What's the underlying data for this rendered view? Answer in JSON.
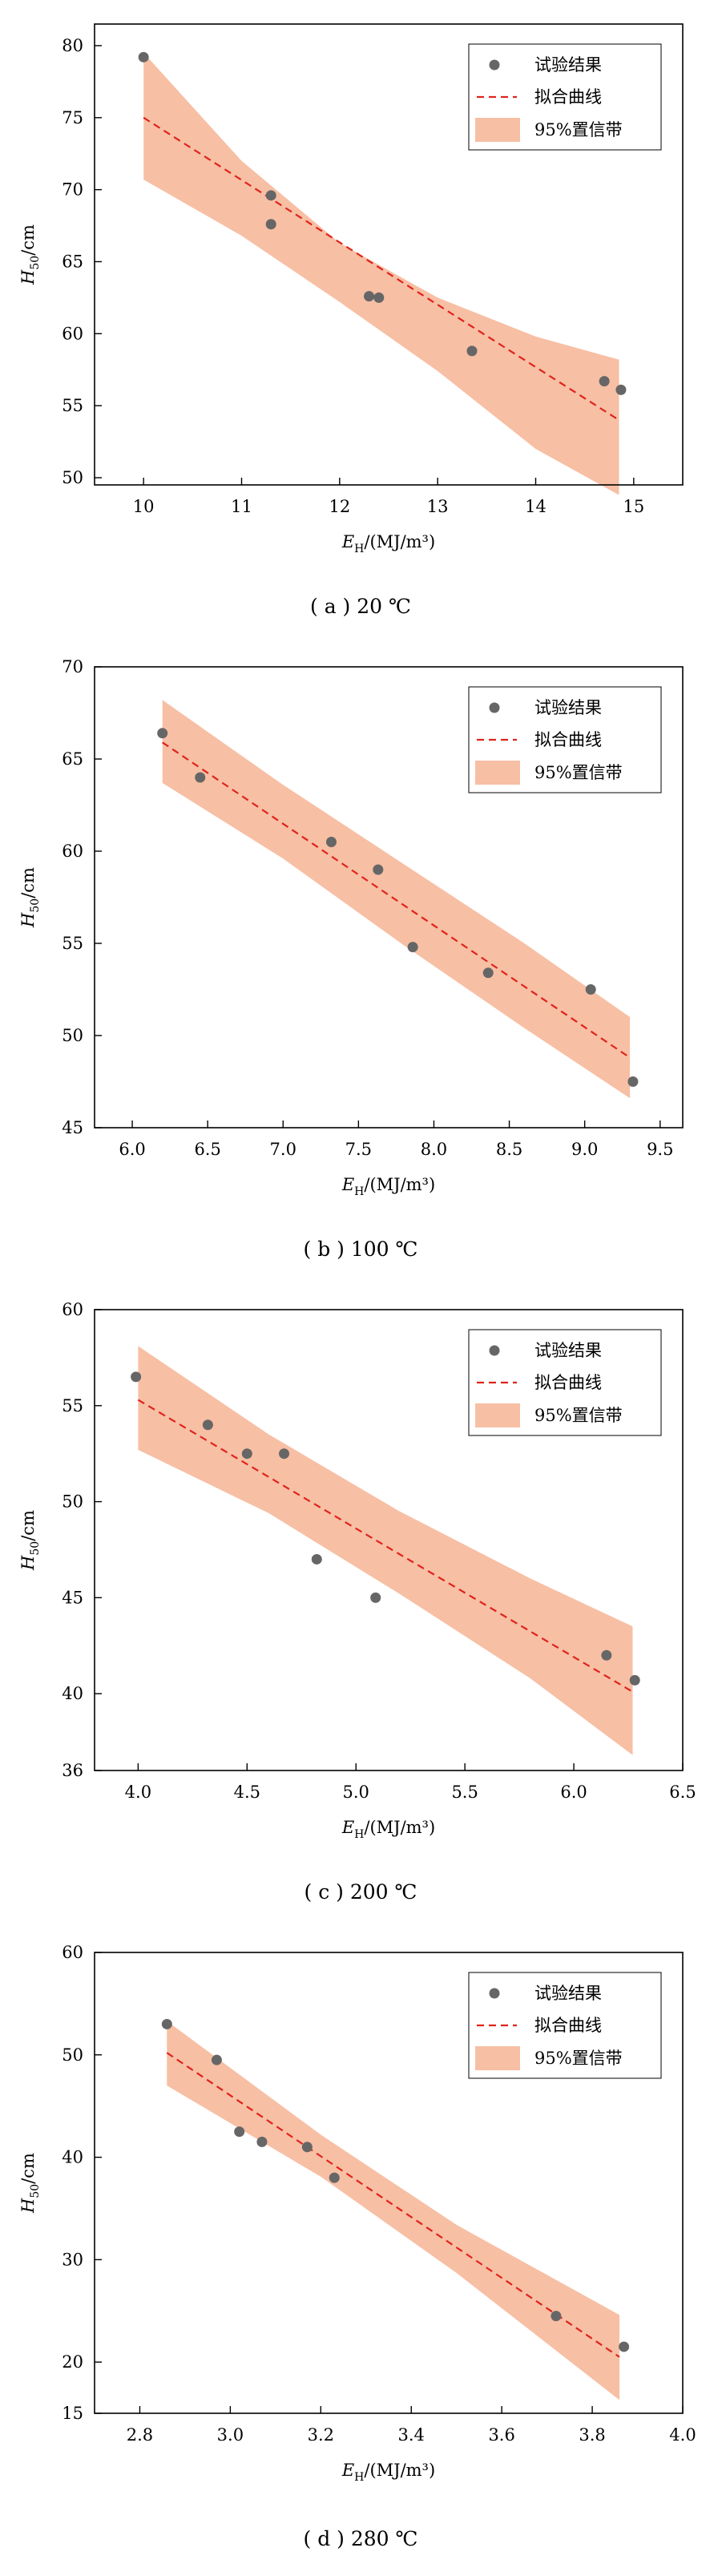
{
  "chart_data": [
    {
      "type": "scatter",
      "caption": "( a ) 20 ℃",
      "xlabel_main": "E",
      "xlabel_sub": "H",
      "xlabel_rest": "/(MJ/m³)",
      "ylabel_main": "H",
      "ylabel_sub": "50",
      "ylabel_rest": "/cm",
      "xlim": [
        9.5,
        15.5
      ],
      "ylim": [
        49.5,
        81.5
      ],
      "xticks": [
        "10",
        "11",
        "12",
        "13",
        "14",
        "15"
      ],
      "xtick_values": [
        10,
        11,
        12,
        13,
        14,
        15
      ],
      "yticks": [
        "50",
        "55",
        "60",
        "65",
        "70",
        "75",
        "80"
      ],
      "ytick_values": [
        50,
        55,
        60,
        65,
        70,
        75,
        80
      ],
      "legend": [
        "试验结果",
        "拟合曲线",
        "95%置信带"
      ],
      "legend_position": "top-right",
      "colors": {
        "points": "#666666",
        "fit": "#e0231b",
        "band": "#f7bfa4"
      },
      "points": {
        "x": [
          10.0,
          11.3,
          11.3,
          12.3,
          12.4,
          13.35,
          14.7,
          14.87
        ],
        "y": [
          79.2,
          69.6,
          67.6,
          62.6,
          62.5,
          58.8,
          56.7,
          56.1
        ]
      },
      "fit": {
        "x": [
          10.0,
          14.85
        ],
        "y": [
          75.0,
          54.0
        ]
      },
      "band": {
        "x": [
          10.0,
          11.0,
          12.0,
          13.0,
          14.0,
          14.85
        ],
        "upper": [
          79.5,
          72.0,
          66.3,
          62.5,
          59.8,
          58.2
        ],
        "lower": [
          70.7,
          66.8,
          62.2,
          57.4,
          52.0,
          48.8
        ]
      }
    },
    {
      "type": "scatter",
      "caption": "( b ) 100 ℃",
      "xlabel_main": "E",
      "xlabel_sub": "H",
      "xlabel_rest": "/(MJ/m³)",
      "ylabel_main": "H",
      "ylabel_sub": "50",
      "ylabel_rest": "/cm",
      "xlim": [
        5.75,
        9.65
      ],
      "ylim": [
        45,
        70
      ],
      "xticks": [
        "6.0",
        "6.5",
        "7.0",
        "7.5",
        "8.0",
        "8.5",
        "9.0",
        "9.5"
      ],
      "xtick_values": [
        6.0,
        6.5,
        7.0,
        7.5,
        8.0,
        8.5,
        9.0,
        9.5
      ],
      "yticks": [
        "45",
        "50",
        "55",
        "60",
        "65",
        "70"
      ],
      "ytick_values": [
        45,
        50,
        55,
        60,
        65,
        70
      ],
      "legend": [
        "试验结果",
        "拟合曲线",
        "95%置信带"
      ],
      "legend_position": "top-right",
      "colors": {
        "points": "#666666",
        "fit": "#e0231b",
        "band": "#f7bfa4"
      },
      "points": {
        "x": [
          6.2,
          6.45,
          7.32,
          7.63,
          7.86,
          8.36,
          9.04,
          9.32
        ],
        "y": [
          66.4,
          64.0,
          60.5,
          59.0,
          54.8,
          53.4,
          52.5,
          47.5
        ]
      },
      "fit": {
        "x": [
          6.2,
          9.3
        ],
        "y": [
          65.9,
          48.8
        ]
      },
      "band": {
        "x": [
          6.2,
          7.0,
          7.8,
          8.6,
          9.3
        ],
        "upper": [
          68.2,
          63.6,
          59.3,
          55.0,
          51.0
        ],
        "lower": [
          63.7,
          59.6,
          54.9,
          50.4,
          46.6
        ]
      }
    },
    {
      "type": "scatter",
      "caption": "( c ) 200 ℃",
      "xlabel_main": "E",
      "xlabel_sub": "H",
      "xlabel_rest": "/(MJ/m³)",
      "ylabel_main": "H",
      "ylabel_sub": "50",
      "ylabel_rest": "/cm",
      "xlim": [
        3.8,
        6.5
      ],
      "ylim": [
        36,
        60
      ],
      "xticks": [
        "4.0",
        "4.5",
        "5.0",
        "5.5",
        "6.0",
        "6.5"
      ],
      "xtick_values": [
        4.0,
        4.5,
        5.0,
        5.5,
        6.0,
        6.5
      ],
      "yticks": [
        "36",
        "40",
        "45",
        "50",
        "55",
        "60"
      ],
      "ytick_values": [
        36,
        40,
        45,
        50,
        55,
        60
      ],
      "legend": [
        "试验结果",
        "拟合曲线",
        "95%置信带"
      ],
      "legend_position": "top-right",
      "colors": {
        "points": "#666666",
        "fit": "#e0231b",
        "band": "#f7bfa4"
      },
      "points": {
        "x": [
          3.99,
          4.32,
          4.5,
          4.67,
          4.82,
          5.09,
          6.15,
          6.28
        ],
        "y": [
          56.5,
          54.0,
          52.5,
          52.5,
          47.0,
          45.0,
          42.0,
          40.7
        ]
      },
      "fit": {
        "x": [
          4.0,
          6.27
        ],
        "y": [
          55.3,
          40.1
        ]
      },
      "band": {
        "x": [
          4.0,
          4.6,
          5.2,
          5.8,
          6.27
        ],
        "upper": [
          58.1,
          53.5,
          49.5,
          46.0,
          43.5
        ],
        "lower": [
          52.7,
          49.4,
          45.2,
          40.8,
          36.8
        ]
      }
    },
    {
      "type": "scatter",
      "caption": "( d ) 280 ℃",
      "xlabel_main": "E",
      "xlabel_sub": "H",
      "xlabel_rest": "/(MJ/m³)",
      "ylabel_main": "H",
      "ylabel_sub": "50",
      "ylabel_rest": "/cm",
      "xlim": [
        2.7,
        4.0
      ],
      "ylim": [
        15,
        60
      ],
      "xticks": [
        "2.8",
        "3.0",
        "3.2",
        "3.4",
        "3.6",
        "3.8",
        "4.0"
      ],
      "xtick_values": [
        2.8,
        3.0,
        3.2,
        3.4,
        3.6,
        3.8,
        4.0
      ],
      "yticks": [
        "15",
        "20",
        "30",
        "40",
        "50",
        "60"
      ],
      "ytick_values": [
        15,
        20,
        30,
        40,
        50,
        60
      ],
      "legend": [
        "试验结果",
        "拟合曲线",
        "95%置信带"
      ],
      "legend_position": "top-right",
      "colors": {
        "points": "#666666",
        "fit": "#e0231b",
        "band": "#f7bfa4"
      },
      "points": {
        "x": [
          2.86,
          2.97,
          3.02,
          3.07,
          3.17,
          3.23,
          3.72,
          3.87
        ],
        "y": [
          53.0,
          49.5,
          42.5,
          41.5,
          41.0,
          38.0,
          24.5,
          21.5
        ]
      },
      "fit": {
        "x": [
          2.86,
          3.86
        ],
        "y": [
          50.2,
          20.5
        ]
      },
      "band": {
        "x": [
          2.86,
          3.2,
          3.5,
          3.86
        ],
        "upper": [
          53.3,
          42.2,
          33.4,
          24.6
        ],
        "lower": [
          47.0,
          38.1,
          28.7,
          16.3
        ]
      }
    }
  ]
}
